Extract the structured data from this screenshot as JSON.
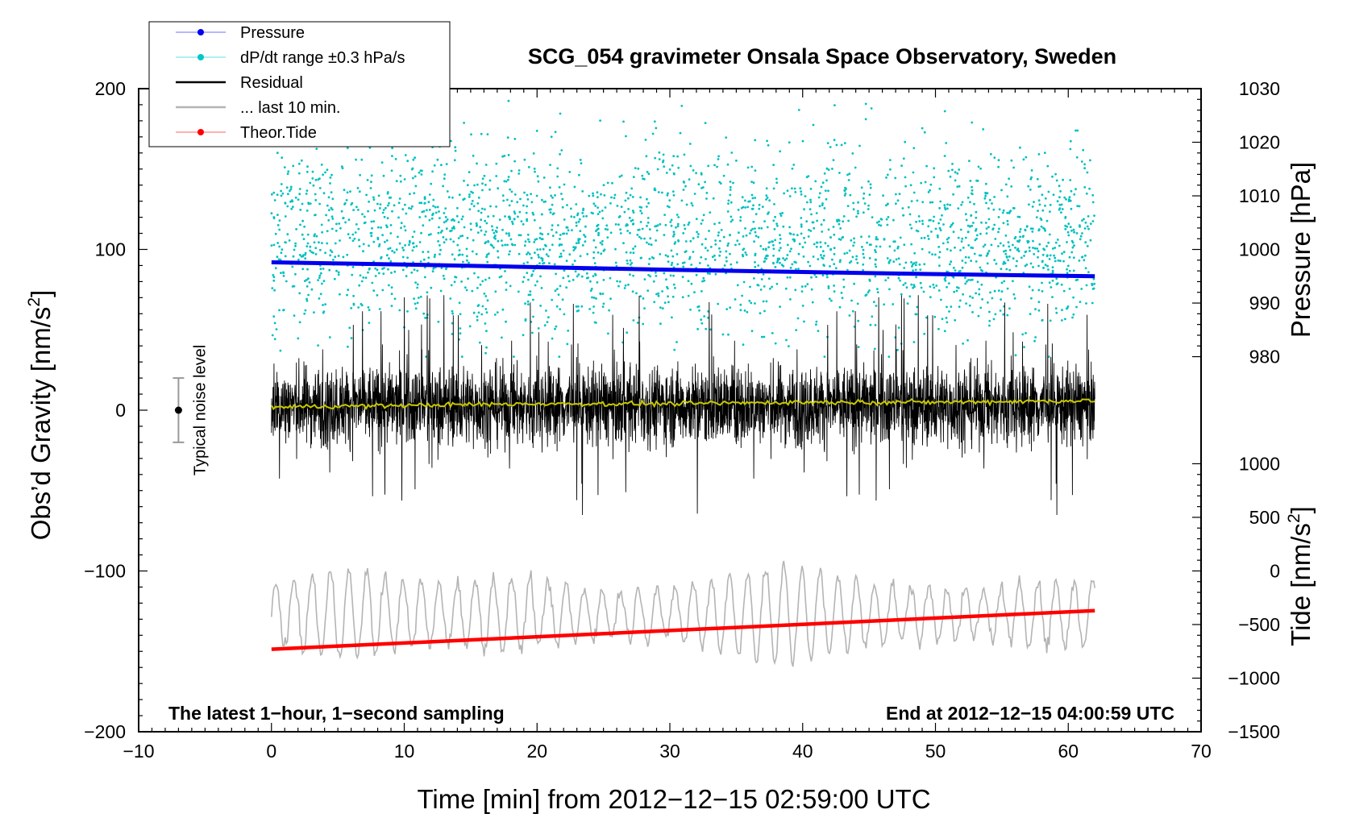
{
  "chart_data": {
    "type": "line",
    "title": "SCG_054 gravimeter Onsala Space Observatory, Sweden",
    "xlabel": "Time [min] from 2012−12−15 02:59:00 UTC",
    "ylabel_left": "Obs’d Gravity [nm/s",
    "ylabel_left_sup": "2",
    "ylabel_left_end": "]",
    "ylabel_right_pressure": "Pressure [hPa]",
    "ylabel_right_tide": "Tide [nm/s",
    "ylabel_right_tide_sup": "2",
    "ylabel_right_tide_end": "]",
    "xlim": [
      -10,
      70
    ],
    "ylim_left": [
      -200,
      200
    ],
    "x_ticks": [
      {
        "value": -10,
        "label": "−10"
      },
      {
        "value": 0,
        "label": "0"
      },
      {
        "value": 10,
        "label": "10"
      },
      {
        "value": 20,
        "label": "20"
      },
      {
        "value": 30,
        "label": "30"
      },
      {
        "value": 40,
        "label": "40"
      },
      {
        "value": 50,
        "label": "50"
      },
      {
        "value": 60,
        "label": "60"
      },
      {
        "value": 70,
        "label": "70"
      }
    ],
    "y_left_ticks": [
      {
        "value": 200,
        "label": "200"
      },
      {
        "value": 100,
        "label": "100"
      },
      {
        "value": 0,
        "label": "0"
      },
      {
        "value": -100,
        "label": "−100"
      },
      {
        "value": -200,
        "label": "−200"
      }
    ],
    "pressure_axis": {
      "range": [
        980,
        1030
      ],
      "left_equivalent": [
        33.3,
        200
      ],
      "ticks": [
        {
          "value": 1030,
          "label": "1030"
        },
        {
          "value": 1020,
          "label": "1020"
        },
        {
          "value": 1010,
          "label": "1010"
        },
        {
          "value": 1000,
          "label": "1000"
        },
        {
          "value": 990,
          "label": "990"
        },
        {
          "value": 980,
          "label": "980"
        }
      ]
    },
    "tide_axis": {
      "range": [
        -1500,
        1000
      ],
      "left_equivalent": [
        -200,
        -33.3
      ],
      "ticks": [
        {
          "value": 1000,
          "label": "1000"
        },
        {
          "value": 500,
          "label": "500"
        },
        {
          "value": 0,
          "label": "0"
        },
        {
          "value": -500,
          "label": "−500"
        },
        {
          "value": -1000,
          "label": "−1000"
        },
        {
          "value": -1500,
          "label": "−1500"
        }
      ]
    },
    "series": [
      {
        "name": "Pressure",
        "color": "#0000ee",
        "axis": "pressure",
        "x": [
          0,
          10,
          20,
          30,
          40,
          50,
          62
        ],
        "values": [
          997.6,
          997.2,
          996.7,
          996.2,
          995.8,
          995.4,
          995.0
        ]
      },
      {
        "name": "dP/dt range ±0.3 hPa/s",
        "color": "#00c0c0",
        "axis": "pressure",
        "kind": "scatter",
        "x_range": [
          0,
          62
        ],
        "center": 1002,
        "spread": 16
      },
      {
        "name": "Residual",
        "color": "#000000",
        "axis": "left",
        "kind": "noise",
        "x_range": [
          0,
          62
        ],
        "amplitude": 22,
        "spike_max": 70
      },
      {
        "name": "... last 10 min.",
        "color": "#ffff00",
        "axis": "left",
        "x": [
          0,
          10,
          20,
          30,
          40,
          50,
          62
        ],
        "values": [
          2,
          3,
          4,
          4,
          5,
          5,
          6
        ]
      },
      {
        "name": "... last 10 min.",
        "color": "#b4b4b4",
        "axis": "tide",
        "kind": "oscillation",
        "x_range": [
          0,
          62
        ],
        "center": -400,
        "amplitude": 450
      },
      {
        "name": "Theor.Tide",
        "color": "#ff0000",
        "axis": "tide",
        "x": [
          0,
          62
        ],
        "values": [
          -730,
          -370
        ]
      }
    ],
    "noise_bar": {
      "x": -7,
      "center": 0,
      "half_range": 20,
      "label": "Typical noise level"
    },
    "legend": {
      "position": "top-left",
      "entries": [
        {
          "label": "Pressure",
          "color": "#0000ee",
          "marker": true,
          "line_color": "#8c8cff"
        },
        {
          "label": "dP/dt range ±0.3 hPa/s",
          "color": "#00c8c8",
          "marker": true,
          "line_color": "#80e6e6"
        },
        {
          "label": "Residual",
          "color": "#000000",
          "marker": false,
          "line_color": "#000000"
        },
        {
          "label": "... last 10 min.",
          "color": "#b4b4b4",
          "marker": false,
          "line_color": "#b4b4b4"
        },
        {
          "label": "Theor.Tide",
          "color": "#ff0000",
          "marker": true,
          "line_color": "#ff8080"
        }
      ]
    },
    "annotations": {
      "bottom_left": "The latest 1−hour, 1−second sampling",
      "bottom_right": "End at 2012−12−15 04:00:59 UTC"
    }
  }
}
